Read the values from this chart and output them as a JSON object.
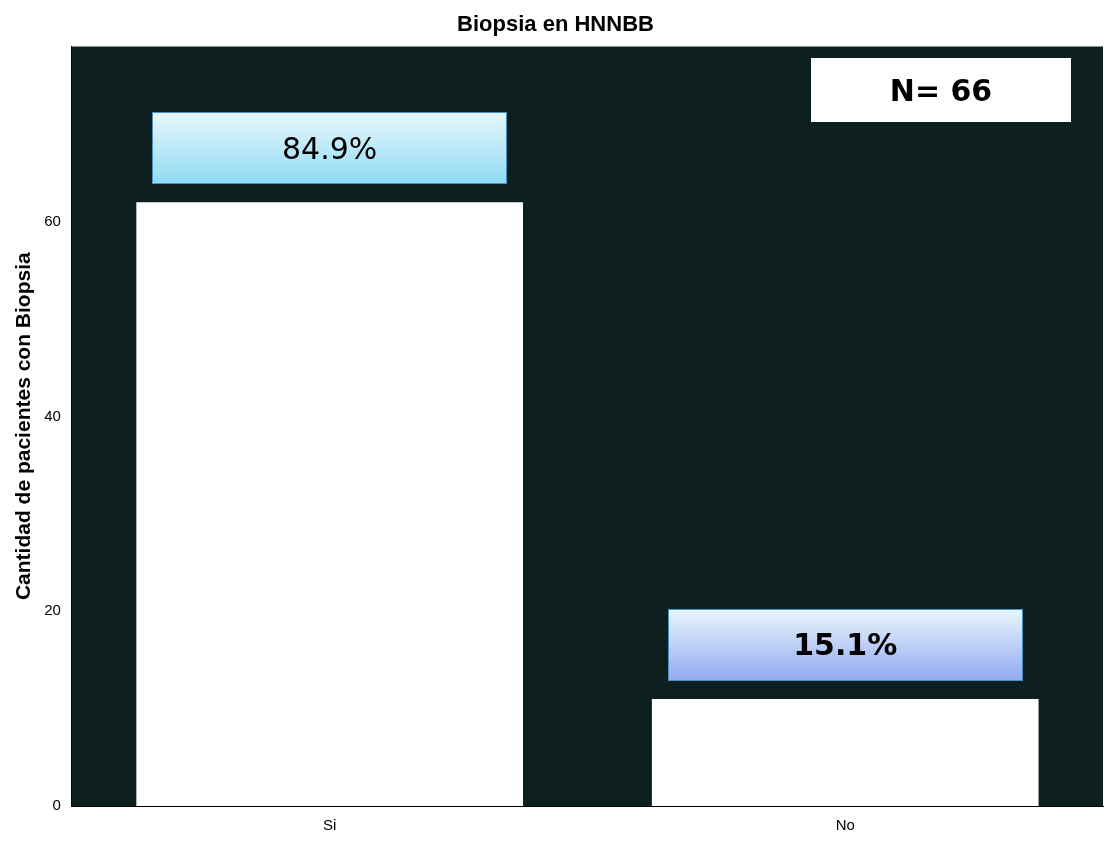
{
  "chart_data": {
    "type": "bar",
    "title": "Biopsia en HNNBB",
    "ylabel": "Cantidad de pacientes con Biopsia",
    "categories": [
      "Si",
      "No"
    ],
    "values": [
      62,
      11
    ],
    "color": "#ffffff",
    "ylim": [
      0,
      78
    ],
    "yticks": [
      0,
      20,
      40,
      60
    ],
    "grid": false,
    "legend": false,
    "annotations": [
      {
        "text": "84.9%",
        "x": "Si",
        "y": 62
      },
      {
        "text": "15.1%",
        "x": "No",
        "y": 11
      },
      "N= 66"
    ]
  }
}
